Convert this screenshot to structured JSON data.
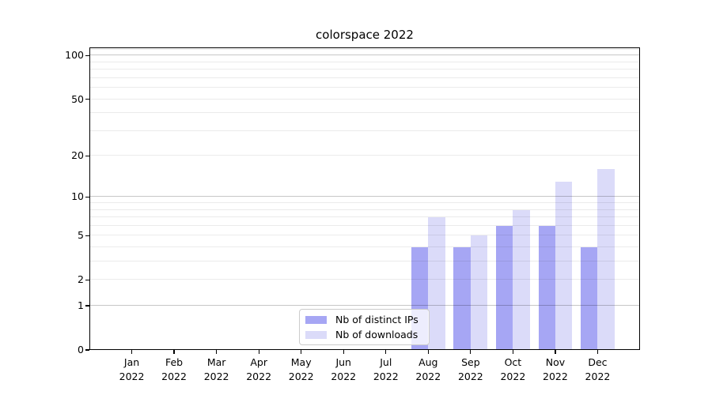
{
  "title": "colorspace 2022",
  "chart_data": {
    "type": "bar",
    "title": "colorspace 2022",
    "categories": [
      {
        "month": "Jan",
        "year": "2022"
      },
      {
        "month": "Feb",
        "year": "2022"
      },
      {
        "month": "Mar",
        "year": "2022"
      },
      {
        "month": "Apr",
        "year": "2022"
      },
      {
        "month": "May",
        "year": "2022"
      },
      {
        "month": "Jun",
        "year": "2022"
      },
      {
        "month": "Jul",
        "year": "2022"
      },
      {
        "month": "Aug",
        "year": "2022"
      },
      {
        "month": "Sep",
        "year": "2022"
      },
      {
        "month": "Oct",
        "year": "2022"
      },
      {
        "month": "Nov",
        "year": "2022"
      },
      {
        "month": "Dec",
        "year": "2022"
      }
    ],
    "series": [
      {
        "name": "Nb of distinct IPs",
        "color": "#a6a6f4",
        "values": [
          0,
          0,
          0,
          0,
          0,
          0,
          0,
          4,
          4,
          6,
          6,
          4
        ]
      },
      {
        "name": "Nb of downloads",
        "color": "#dbdbf9",
        "values": [
          0,
          0,
          0,
          0,
          0,
          0,
          0,
          7,
          5,
          8,
          13,
          16
        ]
      }
    ],
    "xlabel": "",
    "ylabel": "",
    "yscale": "log1p",
    "ylim": [
      0,
      114
    ],
    "y_ticks": [
      0,
      1,
      2,
      5,
      10,
      20,
      50,
      100
    ],
    "y_gridlines": {
      "minor": [
        2,
        3,
        4,
        5,
        6,
        7,
        8,
        9,
        20,
        30,
        40,
        50,
        60,
        70,
        80,
        90,
        110
      ],
      "major": [
        1,
        10,
        100
      ]
    },
    "grid": true,
    "legend_position": "lower center"
  },
  "colors": {
    "grid_minor": "rgba(0,0,0,0.08)",
    "grid_major": "rgba(0,0,0,0.22)",
    "axis": "#000000",
    "legend_border": "#cccccc",
    "background": "#ffffff"
  }
}
